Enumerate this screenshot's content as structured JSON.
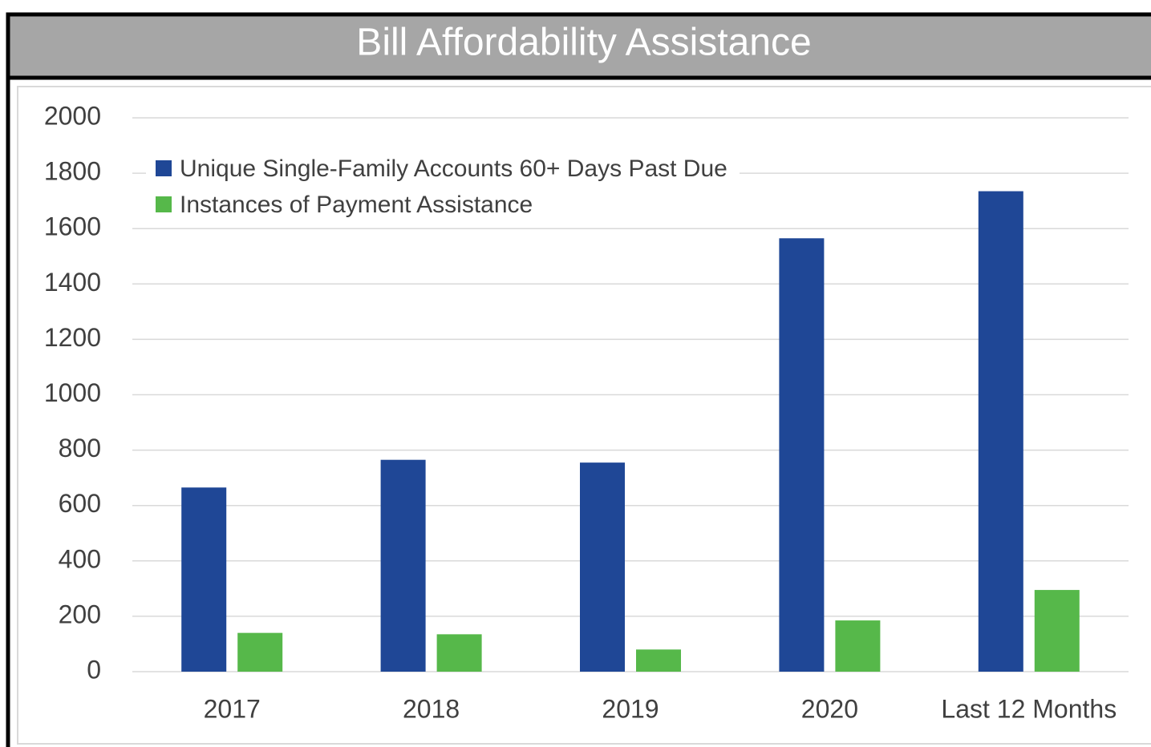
{
  "chart_data": {
    "type": "bar",
    "title": "Bill Affordability Assistance",
    "categories": [
      "2017",
      "2018",
      "2019",
      "2020",
      "Last 12 Months"
    ],
    "series": [
      {
        "name": "Unique Single-Family Accounts 60+ Days Past Due",
        "color": "#1f4796",
        "values": [
          665,
          765,
          755,
          1565,
          1735
        ]
      },
      {
        "name": "Instances of Payment Assistance",
        "color": "#56b84a",
        "values": [
          140,
          135,
          80,
          185,
          295
        ]
      }
    ],
    "ylim": [
      0,
      2000
    ],
    "yticks": [
      0,
      200,
      400,
      600,
      800,
      1000,
      1200,
      1400,
      1600,
      1800,
      2000
    ],
    "grid": true,
    "legend": "upper left"
  }
}
